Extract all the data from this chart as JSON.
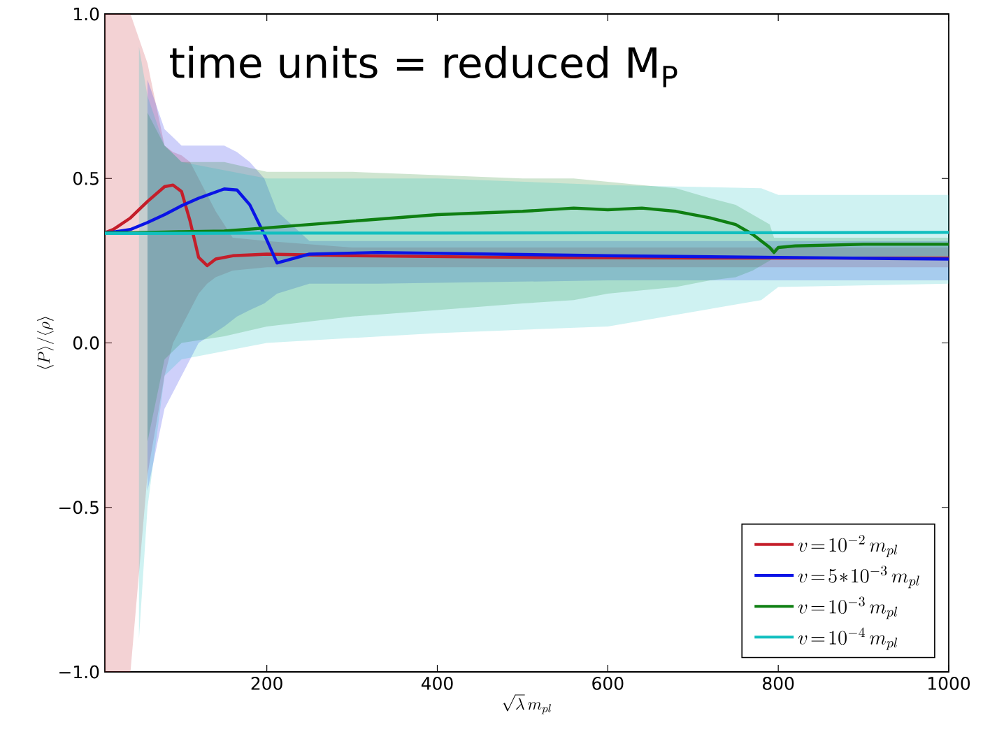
{
  "chart_data": {
    "type": "line",
    "xlabel": "\\sqrt{\\lambda}\\, m_{pl}",
    "ylabel": "\\langle P\\rangle/\\langle\\rho\\rangle",
    "annotations": [
      "time units = reduced M$_{P}$"
    ],
    "xlim": [
      10,
      1000
    ],
    "ylim": [
      -1.0,
      1.0
    ],
    "xticks": [
      200,
      400,
      600,
      800,
      1000
    ],
    "yticks": [
      {
        "value": -1.0,
        "label": "−1.0"
      },
      {
        "value": -0.5,
        "label": "−0.5"
      },
      {
        "value": 0.0,
        "label": "0.0"
      },
      {
        "value": 0.5,
        "label": "0.5"
      },
      {
        "value": 1.0,
        "label": "1.0"
      }
    ],
    "legend": "bottom right",
    "grid": false,
    "series": [
      {
        "name": "v\\!=\\!10^{-2}\\,m_{pl}",
        "color": "#c41e2a",
        "x": [
          10,
          20,
          40,
          60,
          80,
          90,
          100,
          110,
          120,
          130,
          140,
          160,
          200,
          300,
          500,
          700,
          1000
        ],
        "values": [
          0.335,
          0.345,
          0.38,
          0.43,
          0.475,
          0.48,
          0.46,
          0.37,
          0.26,
          0.235,
          0.255,
          0.265,
          0.27,
          0.265,
          0.26,
          0.258,
          0.258
        ],
        "lower": [
          -1,
          -1,
          -1,
          -0.4,
          -0.1,
          0.0,
          0.05,
          0.1,
          0.15,
          0.18,
          0.2,
          0.22,
          0.23,
          0.23,
          0.23,
          0.23,
          0.23
        ],
        "upper": [
          1,
          1,
          1,
          0.85,
          0.6,
          0.58,
          0.57,
          0.55,
          0.5,
          0.45,
          0.4,
          0.32,
          0.31,
          0.29,
          0.29,
          0.29,
          0.29
        ]
      },
      {
        "name": "v\\!=\\!5\\!*\\!10^{-3}\\,m_{pl}",
        "color": "#0a14e6",
        "x": [
          10,
          20,
          40,
          60,
          80,
          100,
          120,
          150,
          165,
          180,
          197,
          212,
          250,
          330,
          600,
          800,
          1000
        ],
        "values": [
          0.335,
          0.337,
          0.345,
          0.366,
          0.39,
          0.417,
          0.44,
          0.468,
          0.465,
          0.42,
          0.33,
          0.243,
          0.27,
          0.275,
          0.265,
          0.26,
          0.255
        ],
        "lower": [
          null,
          null,
          null,
          -0.45,
          -0.2,
          -0.1,
          0.0,
          0.05,
          0.08,
          0.1,
          0.12,
          0.15,
          0.18,
          0.18,
          0.19,
          0.19,
          0.19
        ],
        "upper": [
          null,
          null,
          null,
          0.8,
          0.65,
          0.6,
          0.6,
          0.6,
          0.58,
          0.55,
          0.5,
          0.4,
          0.31,
          0.31,
          0.31,
          0.31,
          0.31
        ]
      },
      {
        "name": "v\\!=\\!10^{-3}\\,m_{pl}",
        "color": "#0f7f12",
        "x": [
          10,
          20,
          40,
          60,
          80,
          100,
          150,
          200,
          300,
          400,
          500,
          560,
          600,
          640,
          680,
          720,
          750,
          770,
          790,
          795,
          800,
          820,
          900,
          1000
        ],
        "values": [
          0.335,
          0.335,
          0.335,
          0.336,
          0.337,
          0.338,
          0.34,
          0.35,
          0.37,
          0.39,
          0.4,
          0.41,
          0.405,
          0.41,
          0.4,
          0.38,
          0.36,
          0.33,
          0.29,
          0.275,
          0.29,
          0.295,
          0.3,
          0.3
        ],
        "lower": [
          null,
          null,
          null,
          -0.3,
          -0.05,
          0.0,
          0.02,
          0.05,
          0.08,
          0.1,
          0.12,
          0.13,
          0.15,
          0.16,
          0.17,
          0.19,
          0.2,
          0.22,
          0.25,
          0.26,
          0.26,
          0.26,
          0.26,
          0.26
        ],
        "upper": [
          null,
          null,
          null,
          0.7,
          0.6,
          0.55,
          0.55,
          0.52,
          0.52,
          0.51,
          0.5,
          0.5,
          0.49,
          0.48,
          0.47,
          0.44,
          0.42,
          0.39,
          0.36,
          0.32,
          0.32,
          0.32,
          0.32,
          0.32
        ]
      },
      {
        "name": "v\\!=\\!10^{-4}\\,m_{pl}",
        "color": "#11bfbf",
        "x": [
          10,
          20,
          40,
          50,
          60,
          80,
          100,
          200,
          400,
          600,
          780,
          800,
          1000
        ],
        "values": [
          0.333,
          0.333,
          0.333,
          0.333,
          0.333,
          0.333,
          0.333,
          0.334,
          0.334,
          0.335,
          0.335,
          0.335,
          0.336
        ],
        "lower": [
          null,
          null,
          null,
          -0.9,
          -0.5,
          -0.1,
          -0.05,
          0.0,
          0.03,
          0.05,
          0.13,
          0.17,
          0.18
        ],
        "upper": [
          null,
          null,
          null,
          0.9,
          0.75,
          0.6,
          0.55,
          0.5,
          0.5,
          0.48,
          0.47,
          0.45,
          0.45
        ]
      }
    ]
  }
}
